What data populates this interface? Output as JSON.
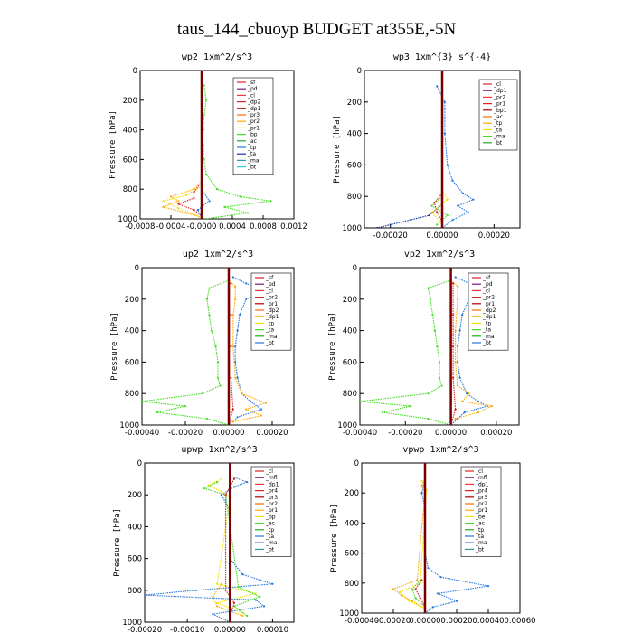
{
  "title": "taus_144_cbuoyp  BUDGET at355E,-5N",
  "chart_data": [
    {
      "type": "line",
      "title": "wp2  1xm^2/s^3",
      "ylabel": "Pressure [hPa]",
      "xlim": [
        -0.0008,
        0.0012
      ],
      "ylim": [
        1000,
        0
      ],
      "xticks": [
        "-0.0008",
        "-0.0004",
        "-0.0000",
        "0.0004",
        "0.0008",
        "0.0012"
      ],
      "yticks": [
        "0",
        "200",
        "400",
        "600",
        "800",
        "1000"
      ],
      "grid": false,
      "legend": [
        "_sf",
        "_pd",
        "_cl",
        "_dp2",
        "_dp1",
        "_pr3",
        "_pr2",
        "_pr1",
        "_bp",
        "_ac",
        "_tp",
        "_ta",
        "_ma",
        "_bt"
      ],
      "series": [
        {
          "name": "_pr1",
          "color": "#ffaa00",
          "y": [
            750,
            800,
            850,
            880,
            920,
            960,
            990
          ],
          "values": [
            0,
            -0.0001,
            -0.0004,
            -0.0003,
            -0.0005,
            -0.0002,
            0
          ]
        },
        {
          "name": "_pr2",
          "color": "#f5e000",
          "y": [
            780,
            840,
            880,
            930,
            970,
            990
          ],
          "values": [
            0,
            -0.0002,
            -0.0005,
            -0.0003,
            -0.0001,
            0
          ]
        },
        {
          "name": "_bp",
          "color": "#44dd22",
          "y": [
            100,
            200,
            300,
            400,
            500,
            600,
            700,
            800,
            850,
            880,
            920,
            960,
            1000
          ],
          "values": [
            3e-05,
            6e-05,
            3e-05,
            2e-05,
            2e-05,
            3e-05,
            6e-05,
            0.0002,
            0.0005,
            0.0009,
            0.0003,
            0.0006,
            5e-05
          ]
        },
        {
          "name": "_dp1",
          "color": "#dd2222",
          "y": [
            750,
            820,
            860,
            900,
            940,
            980
          ],
          "values": [
            0,
            -0.0001,
            -0.0001,
            -0.0003,
            -0.0001,
            0
          ]
        },
        {
          "name": "_tp",
          "color": "#2277dd",
          "y": [
            800,
            880,
            940,
            990
          ],
          "values": [
            0,
            0.0001,
            -5e-05,
            0
          ]
        },
        {
          "name": "_bt",
          "color": "#7a0000",
          "y": [
            0,
            200,
            400,
            600,
            800,
            1000
          ],
          "values": [
            0,
            0,
            0,
            0,
            0,
            0
          ]
        }
      ]
    },
    {
      "type": "line",
      "title": "wp3  1xm^{3} s^{-4}",
      "ylabel": "Pressure [hPa]",
      "xlim": [
        -0.0003,
        0.0003
      ],
      "ylim": [
        1000,
        0
      ],
      "xticks": [
        "-0.00020",
        "0.00000",
        "0.00020"
      ],
      "yticks": [
        "0",
        "200",
        "400",
        "600",
        "800",
        "1000"
      ],
      "grid": false,
      "legend": [
        "_cl",
        "_dp1",
        "_pr2",
        "_pr1",
        "_bp1",
        "_ac",
        "_tp",
        "_ta",
        "_ma",
        "_bt"
      ],
      "series": [
        {
          "name": "_tp",
          "color": "#2277dd",
          "y": [
            100,
            200,
            400,
            600,
            700,
            780,
            820,
            860,
            900,
            950,
            1000
          ],
          "values": [
            -2e-05,
            1e-05,
            1e-05,
            2e-05,
            4e-05,
            8e-05,
            0.00012,
            6e-05,
            0.0001,
            4e-05,
            0
          ]
        },
        {
          "name": "_ta",
          "color": "#1133aa",
          "y": [
            850,
            920,
            980,
            1000
          ],
          "values": [
            0,
            -5e-05,
            -0.0002,
            -0.00025
          ]
        },
        {
          "name": "_bp1",
          "color": "#44dd22",
          "y": [
            800,
            860,
            920,
            980
          ],
          "values": [
            0,
            -4e-05,
            2e-05,
            -2e-05
          ]
        },
        {
          "name": "_cl",
          "color": "#dd2222",
          "y": [
            780,
            840,
            900,
            960
          ],
          "values": [
            0,
            -3e-05,
            -2e-05,
            0
          ]
        },
        {
          "name": "_pr2",
          "color": "#f5e000",
          "y": [
            760,
            820,
            900,
            980
          ],
          "values": [
            0,
            2e-05,
            -4e-05,
            0
          ]
        },
        {
          "name": "_bt",
          "color": "#7a0000",
          "y": [
            0,
            200,
            400,
            600,
            800,
            1000
          ],
          "values": [
            0,
            0,
            0,
            0,
            0,
            0
          ]
        }
      ]
    },
    {
      "type": "line",
      "title": "up2  1xm^2/s^3",
      "ylabel": "Pressure [hPa]",
      "xlim": [
        -0.0004,
        0.0003
      ],
      "ylim": [
        1000,
        0
      ],
      "xticks": [
        "-0.00040",
        "-0.00020",
        "0.00000",
        "0.00020"
      ],
      "yticks": [
        "0",
        "200",
        "400",
        "600",
        "800",
        "1000"
      ],
      "grid": false,
      "legend": [
        "_sf",
        "_pd",
        "_cl",
        "_pr2",
        "_pr1",
        "_dp2",
        "_dp1",
        "_tp",
        "_ta",
        "_ma",
        "_bt"
      ],
      "series": [
        {
          "name": "_dp1",
          "color": "#44dd22",
          "y": [
            80,
            130,
            200,
            300,
            400,
            500,
            600,
            700,
            750,
            800,
            850,
            880,
            920,
            960,
            1000
          ],
          "values": [
            0,
            -9e-05,
            -0.0001,
            -9e-05,
            -8e-05,
            -6e-05,
            -5e-05,
            -5e-05,
            -4e-05,
            -0.00012,
            -0.0004,
            -0.0002,
            -0.00033,
            -0.0001,
            0
          ]
        },
        {
          "name": "_pr1",
          "color": "#2277dd",
          "y": [
            60,
            100,
            150,
            200,
            300,
            400,
            500,
            600,
            700,
            800,
            850,
            900,
            950,
            1000
          ],
          "values": [
            2e-05,
            8e-05,
            0.00016,
            8e-05,
            5e-05,
            4e-05,
            3e-05,
            3e-05,
            4e-05,
            6e-05,
            0.0001,
            0.00015,
            4e-05,
            0
          ]
        },
        {
          "name": "_pr2",
          "color": "#ffaa00",
          "y": [
            80,
            120,
            200,
            300,
            500,
            700,
            800,
            860,
            900,
            940,
            980
          ],
          "values": [
            0,
            3e-05,
            3e-05,
            2e-05,
            2e-05,
            3e-05,
            6e-05,
            0.00017,
            8e-05,
            0.00015,
            2e-05
          ]
        },
        {
          "name": "_cl",
          "color": "#dd2222",
          "y": [
            100,
            300,
            500,
            700,
            900,
            1000
          ],
          "values": [
            1e-05,
            1e-05,
            1e-05,
            1e-05,
            2e-05,
            0
          ]
        },
        {
          "name": "_bt",
          "color": "#7a0000",
          "y": [
            0,
            200,
            400,
            600,
            800,
            1000
          ],
          "values": [
            0,
            0,
            0,
            0,
            0,
            0
          ]
        }
      ]
    },
    {
      "type": "line",
      "title": "vp2  1xm^2/s^3",
      "ylabel": "Pressure [hPa]",
      "xlim": [
        -0.0004,
        0.0003
      ],
      "ylim": [
        1000,
        0
      ],
      "xticks": [
        "-0.00040",
        "-0.00020",
        "0.00000",
        "0.00020"
      ],
      "yticks": [
        "0",
        "200",
        "400",
        "600",
        "800",
        "1000"
      ],
      "grid": false,
      "legend": [
        "_sf",
        "_pd",
        "_cl",
        "_pr2",
        "_pr1",
        "_dp2",
        "_dp1",
        "_tp",
        "_ta",
        "_ma",
        "_bt"
      ],
      "series": [
        {
          "name": "_dp1",
          "color": "#44dd22",
          "y": [
            80,
            130,
            200,
            300,
            400,
            500,
            600,
            700,
            750,
            800,
            850,
            880,
            920,
            960,
            1000
          ],
          "values": [
            0,
            -0.0001,
            -9e-05,
            -8e-05,
            -7e-05,
            -6e-05,
            -5e-05,
            -5e-05,
            -4e-05,
            -0.0001,
            -0.0004,
            -0.00018,
            -0.0003,
            -0.0001,
            0
          ]
        },
        {
          "name": "_pr1",
          "color": "#2277dd",
          "y": [
            60,
            100,
            150,
            200,
            300,
            400,
            500,
            600,
            700,
            800,
            850,
            880,
            920,
            960,
            1000
          ],
          "values": [
            2e-05,
            8e-05,
            0.00015,
            8e-05,
            5e-05,
            4e-05,
            3e-05,
            3e-05,
            4e-05,
            7e-05,
            0.00012,
            0.00016,
            6e-05,
            3e-05,
            0
          ]
        },
        {
          "name": "_pr2",
          "color": "#ffaa00",
          "y": [
            80,
            120,
            200,
            400,
            600,
            750,
            800,
            850,
            880,
            920,
            960
          ],
          "values": [
            0,
            3e-05,
            3e-05,
            2e-05,
            2e-05,
            3e-05,
            8e-05,
            5e-05,
            0.00018,
            0.00012,
            2e-05
          ]
        },
        {
          "name": "_cl",
          "color": "#dd2222",
          "y": [
            100,
            300,
            500,
            700,
            900,
            1000
          ],
          "values": [
            1e-05,
            1e-05,
            1e-05,
            1e-05,
            2e-05,
            0
          ]
        },
        {
          "name": "_bt",
          "color": "#7a0000",
          "y": [
            0,
            200,
            400,
            600,
            800,
            1000
          ],
          "values": [
            0,
            0,
            0,
            0,
            0,
            0
          ]
        }
      ]
    },
    {
      "type": "line",
      "title": "upwp  1xm^2/s^3",
      "ylabel": "Pressure [hPa]",
      "xlim": [
        -0.0002,
        0.00015
      ],
      "ylim": [
        1000,
        0
      ],
      "xticks": [
        "-0.00020",
        "-0.00010",
        "0.00000",
        "0.00010"
      ],
      "yticks": [
        "0",
        "200",
        "400",
        "600",
        "800",
        "1000"
      ],
      "grid": false,
      "legend": [
        "_cl",
        "_mfl",
        "_dp1",
        "_pr4",
        "_pr3",
        "_pr2",
        "_pr1",
        "_bp",
        "_ac",
        "_tp",
        "_ta",
        "_ma",
        "_bt"
      ],
      "series": [
        {
          "name": "_tp",
          "color": "#2277dd",
          "y": [
            80,
            120,
            150,
            200,
            300,
            400,
            500,
            600,
            700,
            760,
            800,
            830,
            860,
            900,
            950,
            1000
          ],
          "values": [
            0,
            4e-05,
            1e-05,
            -2e-05,
            0,
            0,
            0,
            0,
            3e-05,
            0.0001,
            -8e-05,
            -0.0002,
            6e-05,
            8e-05,
            -4e-05,
            0
          ]
        },
        {
          "name": "_pr1",
          "color": "#f5e000",
          "y": [
            100,
            140,
            180,
            220,
            760,
            820,
            880,
            940
          ],
          "values": [
            -2e-05,
            -5e-05,
            -2e-05,
            0,
            -3e-05,
            6e-05,
            -3e-05,
            3e-05
          ]
        },
        {
          "name": "_bp",
          "color": "#44dd22",
          "y": [
            120,
            160,
            200,
            780,
            840,
            900,
            960
          ],
          "values": [
            -3e-05,
            -6e-05,
            -1e-05,
            2e-05,
            7e-05,
            1e-05,
            4e-05
          ]
        },
        {
          "name": "_pr2",
          "color": "#ffaa00",
          "y": [
            760,
            840,
            900,
            960
          ],
          "values": [
            -2e-05,
            -4e-05,
            -3e-05,
            3e-05
          ]
        },
        {
          "name": "_cl",
          "color": "#dd2222",
          "y": [
            100,
            200,
            800,
            880,
            960
          ],
          "values": [
            1e-05,
            -1e-05,
            -1e-05,
            1e-05,
            0
          ]
        },
        {
          "name": "_bt",
          "color": "#7a0000",
          "y": [
            0,
            200,
            400,
            600,
            800,
            1000
          ],
          "values": [
            0,
            0,
            0,
            0,
            0,
            0
          ]
        }
      ]
    },
    {
      "type": "line",
      "title": "vpwp  1xm^2/s^3",
      "ylabel": "Pressure [hPa]",
      "xlim": [
        -0.0004,
        0.0006
      ],
      "ylim": [
        1000,
        0
      ],
      "xticks": [
        "-0.00040",
        "-0.00020",
        "0.00000",
        "0.00020",
        "0.00040",
        "0.00060"
      ],
      "yticks": [
        "0",
        "200",
        "400",
        "600",
        "800",
        "1000"
      ],
      "grid": false,
      "legend": [
        "_cl",
        "_mfl",
        "_dp1",
        "_pr4",
        "_pr3",
        "_pr2",
        "_pr1",
        "_be",
        "_ac",
        "_tp",
        "_ta",
        "_ma",
        "_bt"
      ],
      "series": [
        {
          "name": "_tp",
          "color": "#2277dd",
          "y": [
            100,
            200,
            300,
            600,
            700,
            760,
            820,
            870,
            920,
            960,
            1000
          ],
          "values": [
            0,
            -2e-05,
            0,
            0,
            2e-05,
            0.0001,
            0.0004,
            8e-05,
            0.0002,
            5e-05,
            0
          ]
        },
        {
          "name": "_pr2",
          "color": "#ffaa00",
          "y": [
            100,
            150,
            200,
            780,
            840,
            880,
            920,
            970
          ],
          "values": [
            0,
            -2e-05,
            0,
            -5e-05,
            -0.0002,
            -0.00015,
            -8e-05,
            0
          ]
        },
        {
          "name": "_pr1",
          "color": "#f5e000",
          "y": [
            120,
            180,
            800,
            860,
            920,
            970
          ],
          "values": [
            -2e-05,
            1e-05,
            -3e-05,
            -0.00016,
            -0.0001,
            0
          ]
        },
        {
          "name": "_be",
          "color": "#44dd22",
          "y": [
            780,
            840,
            900,
            960
          ],
          "values": [
            -3e-05,
            -8e-05,
            -6e-05,
            0
          ]
        },
        {
          "name": "_cl",
          "color": "#dd2222",
          "y": [
            780,
            840,
            900,
            960
          ],
          "values": [
            -2e-05,
            -6e-05,
            -3e-05,
            0
          ]
        },
        {
          "name": "_bt",
          "color": "#7a0000",
          "y": [
            0,
            200,
            400,
            600,
            800,
            1000
          ],
          "values": [
            0,
            0,
            0,
            0,
            0,
            0
          ]
        }
      ]
    }
  ]
}
